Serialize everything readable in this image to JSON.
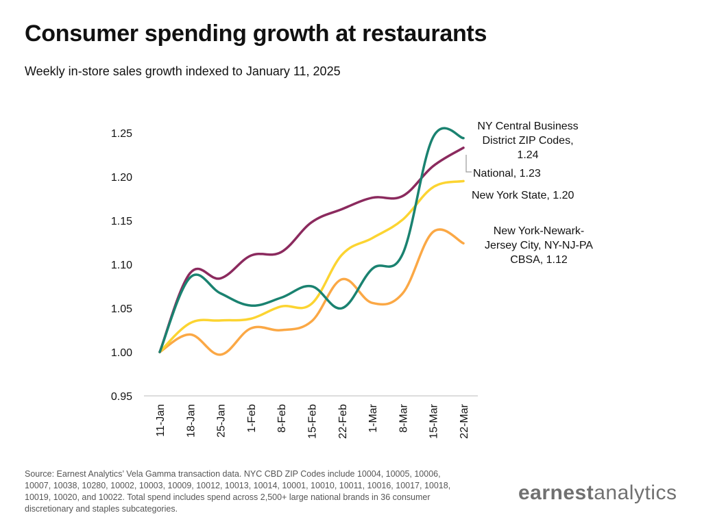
{
  "header": {
    "title": "Consumer spending growth at restaurants",
    "subtitle": "Weekly in-store sales growth indexed to January 11, 2025"
  },
  "footer": {
    "source": "Source: Earnest Analytics’ Vela Gamma transaction data. NYC CBD ZIP Codes include 10004, 10005, 10006, 10007, 10038, 10280, 10002, 10003, 10009, 10012, 10013, 10014, 10001, 10010, 10011, 10016, 10017, 10018, 10019, 10020, and 10022. Total spend includes spend across 2,500+ large national brands in 36 consumer discretionary and staples subcategories.",
    "logo_part1": "earnest",
    "logo_part2": "analytics"
  },
  "chart_data": {
    "type": "line",
    "title": "Consumer spending growth at restaurants",
    "subtitle": "Weekly in-store sales growth indexed to January 11, 2025",
    "xlabel": "",
    "ylabel": "",
    "categories": [
      "11-Jan",
      "18-Jan",
      "25-Jan",
      "1-Feb",
      "8-Feb",
      "15-Feb",
      "22-Feb",
      "1-Mar",
      "8-Mar",
      "15-Mar",
      "22-Mar"
    ],
    "ylim": [
      0.95,
      1.25
    ],
    "yticks": [
      "0.95",
      "1.00",
      "1.05",
      "1.10",
      "1.15",
      "1.20",
      "1.25"
    ],
    "grid": false,
    "legend": "direct-labels-right",
    "series": [
      {
        "name": "NY Central Business District ZIP Codes",
        "label_lines": [
          "NY Central Business",
          "District ZIP Codes,",
          "1.24"
        ],
        "color": "#1a8270",
        "values": [
          1.0,
          1.085,
          1.067,
          1.053,
          1.062,
          1.075,
          1.05,
          1.095,
          1.112,
          1.245,
          1.244
        ]
      },
      {
        "name": "National",
        "label_lines": [
          "National,  1.23"
        ],
        "color": "#8b2a5e",
        "values": [
          1.0,
          1.09,
          1.084,
          1.11,
          1.114,
          1.148,
          1.163,
          1.176,
          1.178,
          1.212,
          1.233
        ]
      },
      {
        "name": "New York State",
        "label_lines": [
          "New York State,  1.20"
        ],
        "color": "#fcd431",
        "values": [
          1.0,
          1.033,
          1.036,
          1.038,
          1.052,
          1.055,
          1.111,
          1.13,
          1.151,
          1.188,
          1.195
        ]
      },
      {
        "name": "New York-Newark-Jersey City, NY-NJ-PA CBSA",
        "label_lines": [
          "New York-Newark-",
          "Jersey City, NY-NJ-PA",
          "CBSA,  1.12"
        ],
        "color": "#fba845",
        "values": [
          1.0,
          1.02,
          0.997,
          1.027,
          1.025,
          1.035,
          1.083,
          1.056,
          1.067,
          1.137,
          1.124
        ]
      }
    ]
  }
}
